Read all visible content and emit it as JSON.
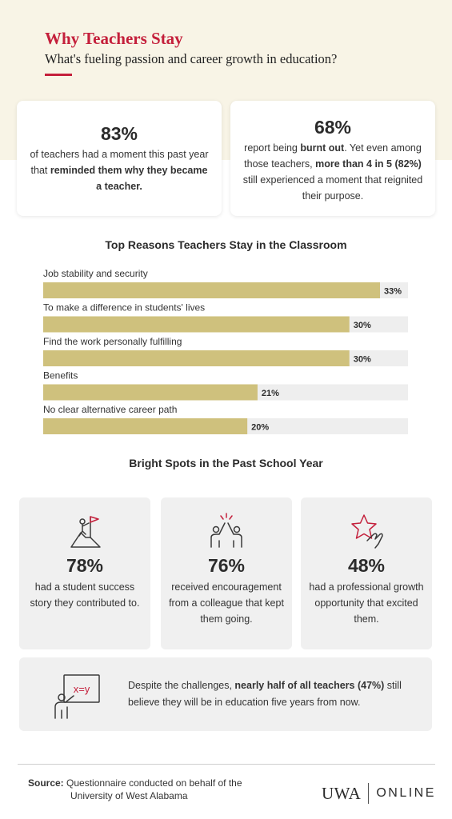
{
  "header": {
    "title": "Why Teachers Stay",
    "subtitle": "What's fueling passion and career growth in education?"
  },
  "stats": [
    {
      "value": "83%",
      "text_before": "of teachers had a moment this past year that ",
      "text_bold": "reminded them why they became a teacher.",
      "text_after": ""
    },
    {
      "value": "68%",
      "text_before": "report being ",
      "text_bold": "burnt out",
      "text_middle": ". Yet even among those teachers, ",
      "text_bold2": "more than 4 in 5 (82%)",
      "text_after": " still experienced a moment that reignited their purpose."
    }
  ],
  "chart_data": {
    "type": "bar",
    "orientation": "horizontal",
    "title": "Top Reasons Teachers Stay in the Classroom",
    "categories": [
      "Job stability and security",
      "To make a difference in students' lives",
      "Find the work personally fulfilling",
      "Benefits",
      "No clear alternative career path"
    ],
    "values": [
      33,
      30,
      30,
      21,
      20
    ],
    "value_labels": [
      "33%",
      "30%",
      "30%",
      "21%",
      "20%"
    ],
    "xlim": [
      0,
      33
    ],
    "grid": false,
    "colors": {
      "bar": "#cfc17d",
      "track": "#eeeeee"
    }
  },
  "bright_spots": {
    "title": "Bright Spots in the Past School Year",
    "cards": [
      {
        "icon": "summit-flag-icon",
        "value": "78%",
        "text": "had a student success story they contributed to."
      },
      {
        "icon": "high-five-icon",
        "value": "76%",
        "text": "received encouragement from a colleague that kept them going."
      },
      {
        "icon": "star-hand-icon",
        "value": "48%",
        "text": "had a professional growth opportunity that excited them."
      }
    ],
    "wide": {
      "icon": "teacher-whiteboard-icon",
      "board_text": "x=y",
      "text_before": "Despite the challenges, ",
      "text_bold": "nearly half of all teachers (47%)",
      "text_after": " still believe they will be in education five years from now."
    }
  },
  "footer": {
    "source_label": "Source:",
    "source_text_1": "Questionnaire conducted on behalf of the",
    "source_text_2": "University of West Alabama",
    "logo_main": "UWA",
    "logo_sub": "ONLINE"
  },
  "colors": {
    "accent": "#c41f3b",
    "band": "#f8f4e6",
    "card": "#f0f0f0"
  }
}
